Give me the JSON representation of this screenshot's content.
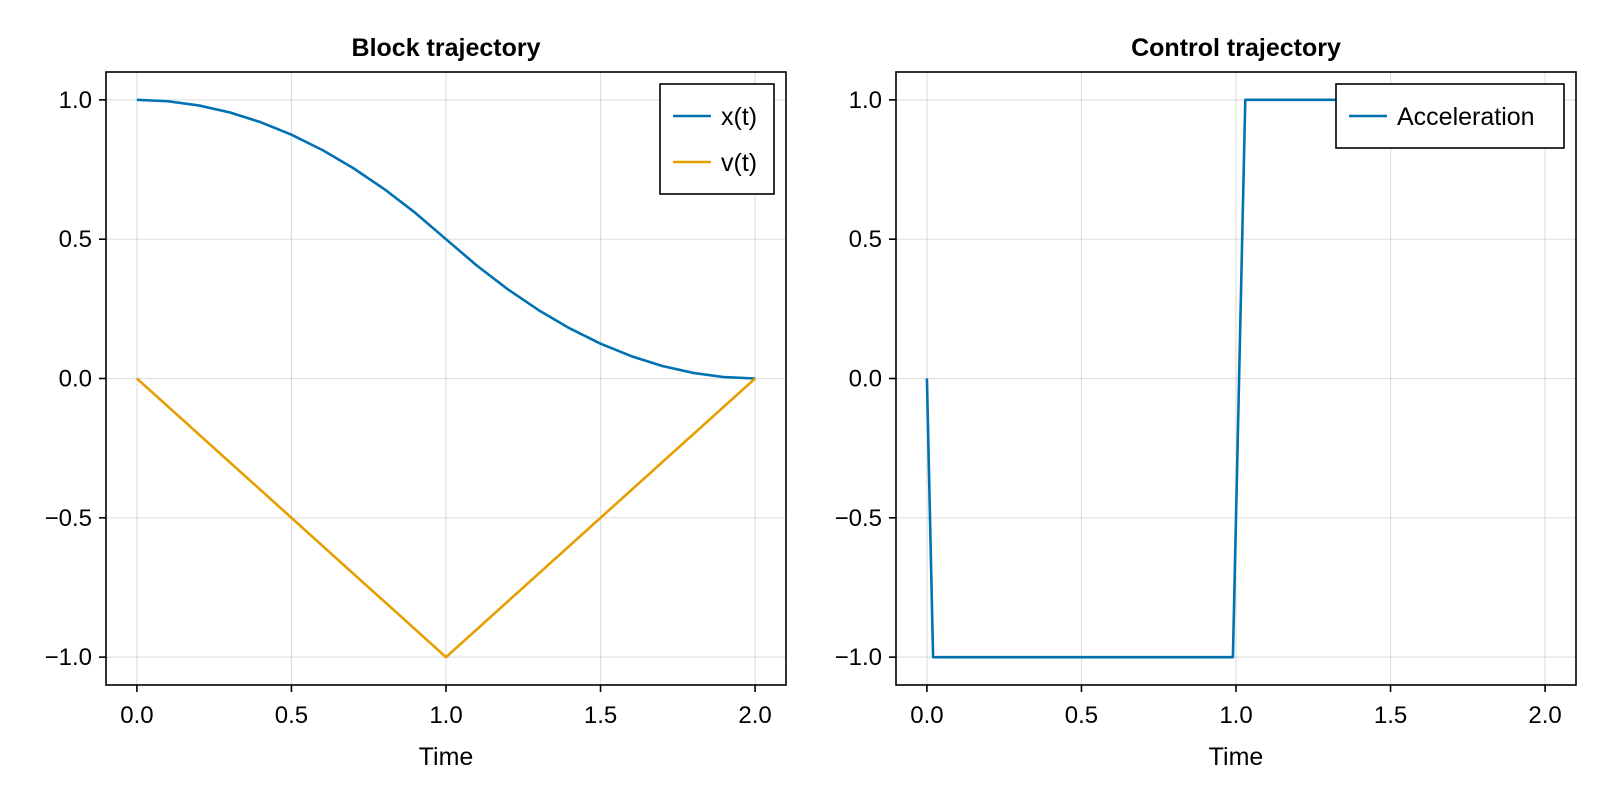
{
  "chart_data": [
    {
      "type": "line",
      "title": "Block trajectory",
      "xlabel": "Time",
      "ylabel": "",
      "xlim": [
        -0.1,
        2.1
      ],
      "ylim": [
        -1.1,
        1.1
      ],
      "xticks": [
        0.0,
        0.5,
        1.0,
        1.5,
        2.0
      ],
      "xtick_labels": [
        "0.0",
        "0.5",
        "1.0",
        "1.5",
        "2.0"
      ],
      "yticks": [
        1.0,
        0.5,
        0.0,
        -0.5,
        -1.0
      ],
      "ytick_labels": [
        "1.0",
        "0.5",
        "0.0",
        "−0.5",
        "−1.0"
      ],
      "grid": true,
      "legend_position": "top-right",
      "series": [
        {
          "name": "x(t)",
          "color": "#0072b2",
          "x": [
            0.0,
            0.1,
            0.2,
            0.3,
            0.4,
            0.5,
            0.6,
            0.7,
            0.8,
            0.9,
            1.0,
            1.1,
            1.2,
            1.3,
            1.4,
            1.5,
            1.6,
            1.7,
            1.8,
            1.9,
            2.0
          ],
          "y": [
            1.0,
            0.995,
            0.98,
            0.955,
            0.92,
            0.875,
            0.82,
            0.755,
            0.68,
            0.595,
            0.5,
            0.405,
            0.32,
            0.245,
            0.18,
            0.125,
            0.08,
            0.045,
            0.02,
            0.005,
            0.0
          ]
        },
        {
          "name": "v(t)",
          "color": "#e69f00",
          "x": [
            0.0,
            1.0,
            2.0
          ],
          "y": [
            0.0,
            -1.0,
            0.0
          ]
        }
      ]
    },
    {
      "type": "line",
      "title": "Control trajectory",
      "xlabel": "Time",
      "ylabel": "",
      "xlim": [
        -0.1,
        2.1
      ],
      "ylim": [
        -1.1,
        1.1
      ],
      "xticks": [
        0.0,
        0.5,
        1.0,
        1.5,
        2.0
      ],
      "xtick_labels": [
        "0.0",
        "0.5",
        "1.0",
        "1.5",
        "2.0"
      ],
      "yticks": [
        1.0,
        0.5,
        0.0,
        -0.5,
        -1.0
      ],
      "ytick_labels": [
        "1.0",
        "0.5",
        "0.0",
        "−0.5",
        "−1.0"
      ],
      "grid": true,
      "legend_position": "top-right",
      "series": [
        {
          "name": "Acceleration",
          "color": "#0072b2",
          "x": [
            0.0,
            0.02,
            0.99,
            1.03,
            2.0
          ],
          "y": [
            0.0,
            -1.0,
            -1.0,
            1.0,
            1.0
          ]
        }
      ]
    }
  ]
}
